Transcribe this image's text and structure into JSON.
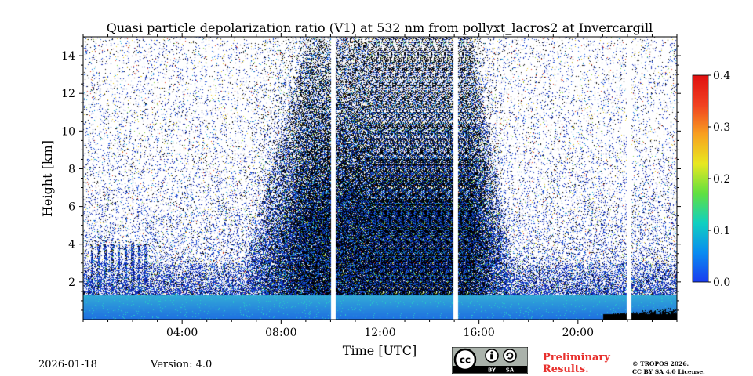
{
  "chart_data": {
    "type": "heatmap",
    "title": "Quasi particle depolarization ratio (V1) at 532 nm from pollyxt_lacros2 at Invercargill",
    "xlabel": "Time [UTC]",
    "ylabel": "Height [km]",
    "x_ticks": [
      "04:00",
      "08:00",
      "12:00",
      "16:00",
      "20:00"
    ],
    "x_tick_hours": [
      4,
      8,
      12,
      16,
      20
    ],
    "xlim_hours": [
      0,
      24
    ],
    "y_ticks": [
      "2",
      "4",
      "6",
      "8",
      "10",
      "12",
      "14"
    ],
    "y_tick_values": [
      2,
      4,
      6,
      8,
      10,
      12,
      14
    ],
    "ylim_km": [
      0,
      15
    ],
    "colorbar": {
      "ticks": [
        "0.0",
        "0.1",
        "0.2",
        "0.3",
        "0.4"
      ],
      "tick_values": [
        0.0,
        0.1,
        0.2,
        0.3,
        0.4
      ],
      "range": [
        0.0,
        0.4
      ],
      "colors": [
        "#1a3cf0",
        "#0a8cf0",
        "#10d0c0",
        "#60e040",
        "#e8e820",
        "#f8a020",
        "#f04020",
        "#e01010"
      ]
    },
    "data_gaps_hours": [
      10.1,
      15.05,
      22.05
    ],
    "features": {
      "near_surface_layer_top_km": 1.3,
      "dense_signal_start_hour": 8.5,
      "dense_signal_end_hour": 17.0,
      "dense_signal_top_km": 15.0
    }
  },
  "footer": {
    "date": "2026-01-18",
    "version": "Version: 4.0",
    "preliminary_line1": "Preliminary",
    "preliminary_line2": "Results.",
    "copyright_line1": "© TROPOS 2026.",
    "copyright_line2": "CC BY SA 4.0 License.",
    "license_badge": {
      "icons": [
        "cc-icon",
        "by-icon",
        "sa-icon"
      ],
      "by_label": "BY",
      "sa_label": "SA"
    }
  }
}
